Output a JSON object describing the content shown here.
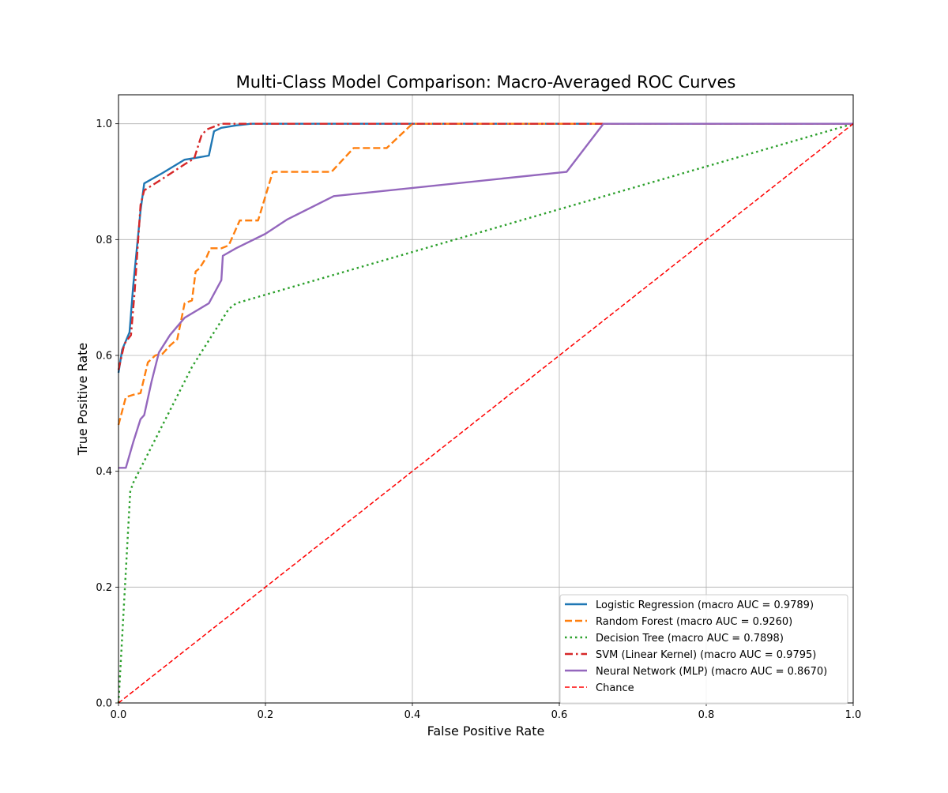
{
  "chart_data": {
    "type": "line",
    "title": "Multi-Class Model Comparison: Macro-Averaged ROC Curves",
    "xlabel": "False Positive Rate",
    "ylabel": "True Positive Rate",
    "xlim": [
      0.0,
      1.0
    ],
    "ylim": [
      0.0,
      1.05
    ],
    "xticks": [
      0.0,
      0.2,
      0.4,
      0.6,
      0.8,
      1.0
    ],
    "yticks": [
      0.0,
      0.2,
      0.4,
      0.6,
      0.8,
      1.0
    ],
    "xtick_labels": [
      "0.0",
      "0.2",
      "0.4",
      "0.6",
      "0.8",
      "1.0"
    ],
    "ytick_labels": [
      "0.0",
      "0.2",
      "0.4",
      "0.6",
      "0.8",
      "1.0"
    ],
    "grid": true,
    "legend_position": "lower right",
    "series": [
      {
        "name": "Logistic Regression (macro AUC = 0.9789)",
        "color": "#1f77b4",
        "dash": "solid",
        "x": [
          0.0,
          0.005,
          0.015,
          0.02,
          0.03,
          0.035,
          0.06,
          0.09,
          0.1,
          0.123,
          0.13,
          0.14,
          0.16,
          0.18,
          1.0
        ],
        "y": [
          0.57,
          0.61,
          0.64,
          0.72,
          0.85,
          0.897,
          0.915,
          0.938,
          0.94,
          0.945,
          0.987,
          0.993,
          0.997,
          1.0,
          1.0
        ]
      },
      {
        "name": "Random Forest (macro AUC = 0.9260)",
        "color": "#ff7f0e",
        "dash": "dashed",
        "x": [
          0.0,
          0.01,
          0.02,
          0.03,
          0.04,
          0.05,
          0.06,
          0.07,
          0.08,
          0.09,
          0.1,
          0.105,
          0.11,
          0.12,
          0.125,
          0.14,
          0.15,
          0.165,
          0.19,
          0.21,
          0.29,
          0.32,
          0.365,
          0.4,
          1.0
        ],
        "y": [
          0.48,
          0.528,
          0.532,
          0.535,
          0.588,
          0.6,
          0.603,
          0.617,
          0.628,
          0.69,
          0.695,
          0.745,
          0.75,
          0.77,
          0.785,
          0.785,
          0.79,
          0.833,
          0.833,
          0.917,
          0.917,
          0.958,
          0.958,
          1.0,
          1.0
        ]
      },
      {
        "name": "Decision Tree (macro AUC = 0.7898)",
        "color": "#2ca02c",
        "dash": "dotted",
        "x": [
          0.0,
          0.016,
          0.02,
          0.05,
          0.1,
          0.15,
          0.16,
          1.0
        ],
        "y": [
          0.0,
          0.365,
          0.38,
          0.455,
          0.58,
          0.68,
          0.69,
          1.0
        ]
      },
      {
        "name": "SVM (Linear Kernel) (macro AUC = 0.9795)",
        "color": "#d62728",
        "dash": "dashdot",
        "x": [
          0.0,
          0.008,
          0.017,
          0.022,
          0.03,
          0.035,
          0.06,
          0.09,
          0.103,
          0.113,
          0.12,
          0.13,
          0.14,
          0.16,
          1.0
        ],
        "y": [
          0.575,
          0.62,
          0.635,
          0.71,
          0.86,
          0.885,
          0.905,
          0.93,
          0.94,
          0.98,
          0.99,
          0.995,
          1.0,
          1.0,
          1.0
        ]
      },
      {
        "name": "Neural Network (MLP) (macro AUC = 0.8670)",
        "color": "#9467bd",
        "dash": "solid",
        "x": [
          0.0,
          0.01,
          0.02,
          0.03,
          0.035,
          0.045,
          0.055,
          0.07,
          0.09,
          0.123,
          0.14,
          0.142,
          0.16,
          0.2,
          0.23,
          0.293,
          0.61,
          0.66,
          1.0
        ],
        "y": [
          0.406,
          0.406,
          0.45,
          0.49,
          0.497,
          0.555,
          0.605,
          0.635,
          0.665,
          0.69,
          0.73,
          0.772,
          0.785,
          0.81,
          0.835,
          0.875,
          0.917,
          1.0,
          1.0
        ]
      },
      {
        "name": "Chance",
        "color": "#ff0000",
        "dash": "dashed-thin",
        "x": [
          0.0,
          1.0
        ],
        "y": [
          0.0,
          1.0
        ]
      }
    ]
  }
}
